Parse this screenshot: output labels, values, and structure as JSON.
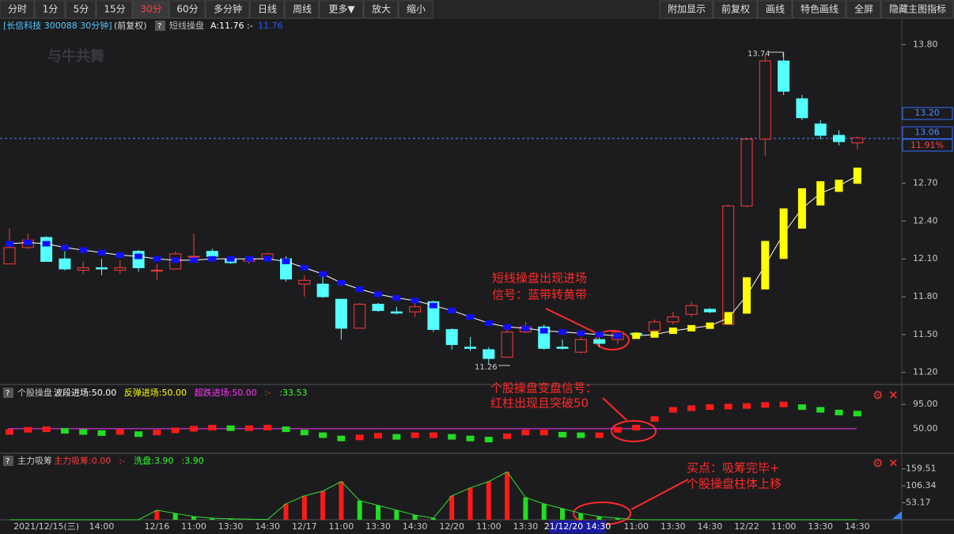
{
  "toolbar": {
    "left": [
      "分时",
      "1分",
      "5分",
      "15分",
      "30分",
      "60分",
      "多分钟",
      "日线",
      "周线",
      "更多▼",
      "放大",
      "缩小"
    ],
    "right": [
      "附加显示",
      "前复权",
      "画线",
      "特色画线",
      "全屏",
      "隐藏主图指标"
    ]
  },
  "header": {
    "symbol": "[长信科技 300088 30分钟]",
    "adjust": "(前复权)",
    "help": "?",
    "indicator": "短线操盘",
    "a_label": "A:11.76",
    "dash": ":-",
    "value": "11.76"
  },
  "watermark": "与牛共舞",
  "main": {
    "type": "candlestick",
    "ylim": [
      11.11,
      13.89
    ],
    "yticks": [
      {
        "value": 13.8,
        "label": "13.80"
      },
      {
        "value": 12.7,
        "label": "12.70"
      },
      {
        "value": 12.4,
        "label": "12.40"
      },
      {
        "value": 12.1,
        "label": "12.10"
      },
      {
        "value": 11.8,
        "label": "11.80"
      },
      {
        "value": 11.5,
        "label": "11.50"
      },
      {
        "value": 11.2,
        "label": "11.20"
      }
    ],
    "up_color": "#ff3c3c",
    "down_color": "#54ffff",
    "open": [
      12.06,
      12.19,
      12.27,
      12.1,
      12.01,
      12.03,
      12.01,
      12.16,
      12.01,
      12.02,
      12.12,
      12.16,
      12.1,
      12.08,
      12.1,
      12.1,
      11.9,
      11.9,
      11.78,
      11.55,
      11.74,
      11.68,
      11.68,
      11.76,
      11.54,
      11.4,
      11.38,
      11.32,
      11.52,
      11.56,
      11.4,
      11.36,
      11.46,
      11.46,
      11.51,
      11.53,
      11.6,
      11.66,
      11.7,
      11.58,
      12.52,
      13.05,
      13.67,
      13.37,
      13.17,
      13.08,
      13.02
    ],
    "high": [
      12.34,
      12.3,
      12.28,
      12.16,
      12.08,
      12.1,
      12.09,
      12.17,
      12.06,
      12.16,
      12.3,
      12.18,
      12.12,
      12.12,
      12.15,
      12.12,
      11.97,
      12.0,
      11.78,
      11.75,
      11.75,
      11.72,
      11.76,
      11.77,
      11.55,
      11.48,
      11.4,
      11.55,
      11.6,
      11.58,
      11.46,
      11.48,
      11.5,
      11.53,
      11.52,
      11.62,
      11.68,
      11.76,
      11.71,
      12.53,
      13.06,
      13.72,
      13.74,
      13.4,
      13.2,
      13.12,
      13.07
    ],
    "low": [
      12.06,
      12.18,
      12.08,
      12.01,
      11.98,
      11.97,
      11.98,
      12.0,
      11.93,
      12.02,
      12.1,
      12.1,
      12.06,
      12.06,
      12.1,
      11.92,
      11.8,
      11.79,
      11.46,
      11.55,
      11.68,
      11.66,
      11.64,
      11.52,
      11.38,
      11.37,
      11.26,
      11.32,
      11.51,
      11.38,
      11.38,
      11.35,
      11.4,
      11.42,
      11.48,
      11.5,
      11.58,
      11.64,
      11.67,
      11.58,
      12.51,
      12.92,
      13.4,
      13.2,
      13.05,
      13.0,
      12.97
    ],
    "close": [
      12.19,
      12.25,
      12.08,
      12.02,
      12.03,
      12.02,
      12.03,
      12.03,
      12.01,
      12.14,
      12.12,
      12.12,
      12.07,
      12.1,
      12.14,
      11.94,
      11.93,
      11.8,
      11.55,
      11.74,
      11.69,
      11.67,
      11.72,
      11.54,
      11.42,
      11.39,
      11.31,
      11.52,
      11.56,
      11.39,
      11.39,
      11.46,
      11.43,
      11.52,
      11.5,
      11.6,
      11.64,
      11.73,
      11.68,
      12.52,
      13.05,
      13.67,
      13.43,
      13.22,
      13.08,
      13.03,
      13.06
    ],
    "blue_band": [
      12.22,
      12.23,
      12.22,
      12.19,
      12.17,
      12.15,
      12.13,
      12.12,
      12.1,
      12.09,
      12.09,
      12.1,
      12.1,
      12.1,
      12.1,
      12.08,
      12.03,
      11.98,
      11.91,
      11.86,
      11.82,
      11.79,
      11.77,
      11.73,
      11.69,
      11.64,
      11.59,
      11.56,
      11.55,
      11.53,
      11.52,
      11.51,
      11.5,
      11.49,
      null,
      null,
      null,
      null,
      null,
      null,
      null,
      null,
      null,
      null,
      null,
      null,
      null
    ],
    "yellow_band": [
      null,
      null,
      null,
      null,
      null,
      null,
      null,
      null,
      null,
      null,
      null,
      null,
      null,
      null,
      null,
      null,
      null,
      null,
      null,
      null,
      null,
      null,
      null,
      null,
      null,
      null,
      null,
      null,
      null,
      null,
      null,
      null,
      null,
      null,
      11.49,
      11.5,
      11.53,
      11.55,
      11.57,
      11.63,
      11.81,
      12.05,
      12.3,
      12.5,
      12.62,
      12.68,
      12.76
    ],
    "blue_color": "#1010ff",
    "yellow_color": "#ffff00",
    "high_label": "13.74",
    "low_label": "11.26",
    "price_boxes": [
      {
        "value": 13.2,
        "label": "13.20"
      },
      {
        "value": 13.06,
        "label": "13.06"
      }
    ],
    "change_box": "11.91%",
    "annotation": [
      "短线操盘出现进场",
      "信号：蓝带转黄带"
    ]
  },
  "panel2": {
    "help": "?",
    "name": "个股操盘",
    "items": [
      {
        "label": "波段进场:50.00",
        "color": "#ffffff"
      },
      {
        "label": "反弹进场:50.00",
        "color": "#ffff00"
      },
      {
        "label": "超跌进场:50.00",
        "color": "#ff33ff"
      },
      {
        "label": ":-",
        "color": "#ff3c3c"
      },
      {
        "label": ":33.53",
        "color": "#33ff33"
      }
    ],
    "ylim": [
      6,
      126
    ],
    "yticks": [
      {
        "value": 95,
        "label": "95.00"
      },
      {
        "value": 50,
        "label": "50.00"
      }
    ],
    "values": [
      44,
      48,
      49,
      46,
      44,
      42,
      44,
      40,
      43,
      47,
      50,
      52,
      51,
      51,
      52,
      49,
      43,
      38,
      32,
      34,
      37,
      35,
      38,
      38,
      35,
      32,
      30,
      36,
      43,
      43,
      39,
      38,
      38,
      48,
      52,
      68,
      85,
      88,
      90,
      91,
      92,
      94,
      95,
      90,
      85,
      80,
      78
    ],
    "annotation": [
      "个股操盘变盘信号：",
      "红柱出现且突破50"
    ]
  },
  "panel3": {
    "help": "?",
    "name": "主力吸筹",
    "items": [
      {
        "label": "主力吸筹:0.00",
        "color": "#ff3c3c"
      },
      {
        "label": ":-",
        "color": "#ff3c3c"
      },
      {
        "label": "洗盘:3.90",
        "color": "#33ff33"
      },
      {
        "label": ":3.90",
        "color": "#33ff33"
      }
    ],
    "ylim": [
      0,
      201
    ],
    "yticks": [
      {
        "value": 159.51,
        "label": "159.51"
      },
      {
        "value": 106.34,
        "label": "106.34"
      },
      {
        "value": 53.17,
        "label": "53.17"
      }
    ],
    "values": [
      0,
      0,
      0,
      0,
      0,
      0,
      0,
      0,
      30,
      20,
      10,
      5,
      3,
      2,
      1,
      50,
      75,
      90,
      120,
      60,
      45,
      30,
      15,
      5,
      75,
      100,
      120,
      150,
      70,
      50,
      35,
      20,
      10,
      5,
      0,
      0,
      0,
      0,
      0,
      0,
      0,
      0,
      0,
      0,
      0,
      0,
      0
    ],
    "annotation": [
      "买点：吸筹完毕+",
      "个股操盘柱体上移"
    ]
  },
  "time_axis": {
    "categories": [
      null,
      null,
      "2021/12/15(三)",
      null,
      null,
      "14:00",
      null,
      null,
      "12/16",
      null,
      "11:00",
      null,
      "13:30",
      null,
      "14:30",
      null,
      "12/17",
      null,
      "11:00",
      null,
      "13:30",
      null,
      "14:30",
      null,
      "12/20",
      null,
      "11:00",
      null,
      "13:30",
      null,
      null,
      null,
      null,
      null,
      "11:00",
      null,
      "13:30",
      null,
      "14:30",
      null,
      "12/22",
      null,
      "11:00",
      null,
      "13:30",
      null,
      "14:30"
    ],
    "cursor": "21/12/20 14:30"
  }
}
